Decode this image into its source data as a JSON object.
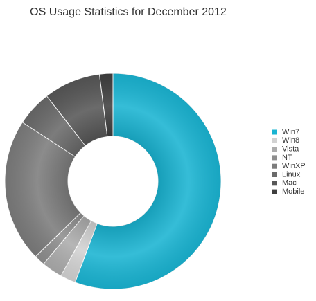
{
  "chart_data": {
    "type": "donut",
    "title": "OS Usage Statistics for December 2012",
    "categories": [
      "Win7",
      "Win8",
      "Vista",
      "NT",
      "WinXP",
      "Linux",
      "Mac",
      "Mobile"
    ],
    "values": [
      55.7,
      2.3,
      3.1,
      1.6,
      21.5,
      5.3,
      8.5,
      2.0
    ],
    "colors": [
      "#1ab4d2",
      "#d2d2d2",
      "#acacac",
      "#8e8e8e",
      "#7c7c7c",
      "#6a6a6a",
      "#575757",
      "#3f3f3f"
    ],
    "legend": "right"
  }
}
